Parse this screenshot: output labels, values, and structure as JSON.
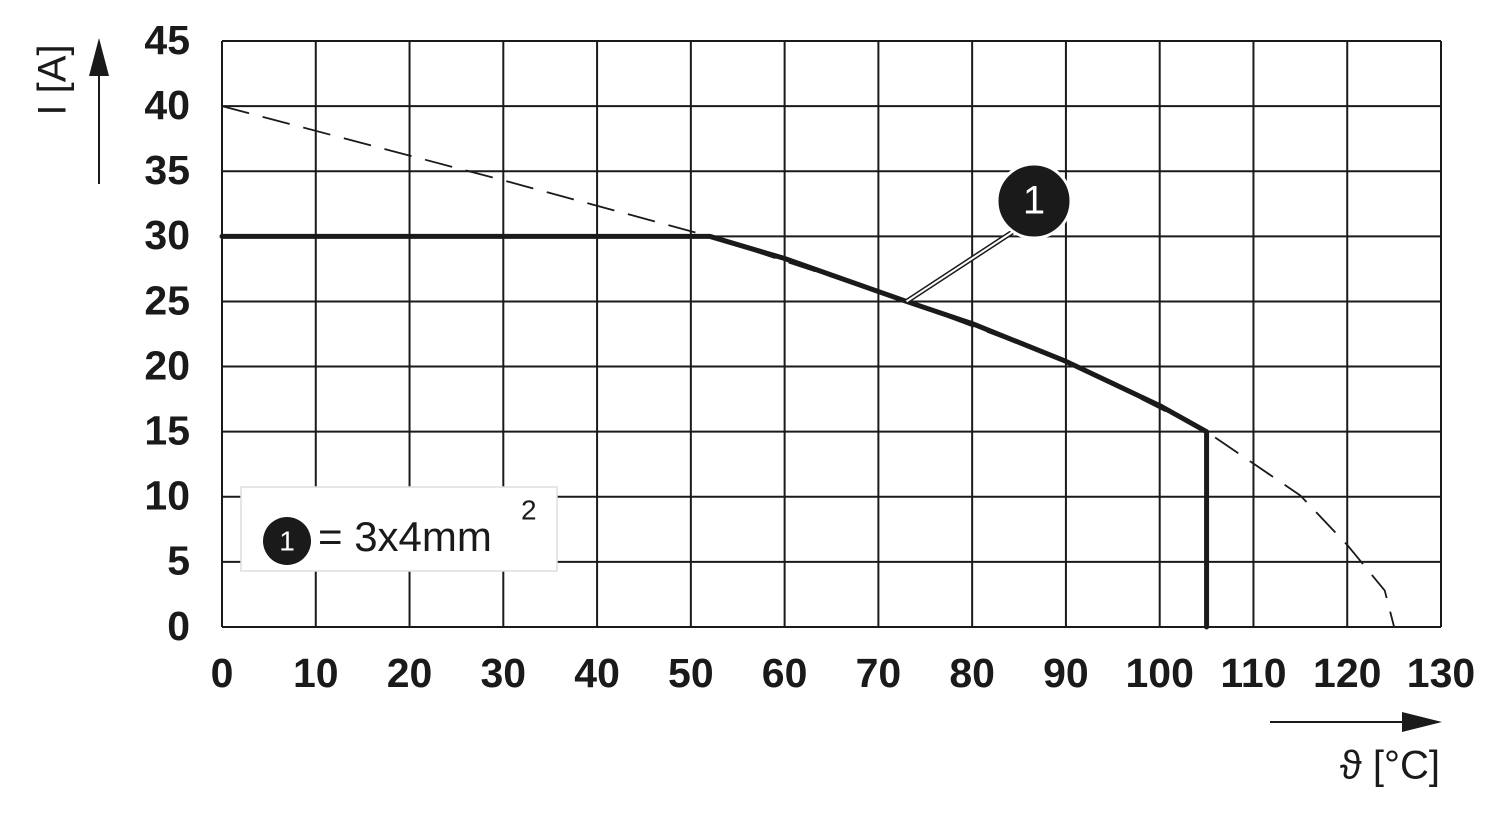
{
  "chart_data": {
    "type": "line",
    "x_label": "ϑ [°C]",
    "y_label": "I [A]",
    "xlim": [
      0,
      130
    ],
    "xticks": [
      0,
      10,
      20,
      30,
      40,
      50,
      60,
      70,
      80,
      90,
      100,
      110,
      120,
      130
    ],
    "ylim": [
      0,
      45
    ],
    "yticks": [
      0,
      5,
      10,
      15,
      20,
      25,
      30,
      35,
      40,
      45
    ],
    "grid": true,
    "series": [
      {
        "style": "dashed",
        "color": "#1a1a1a",
        "x": [
          0,
          30,
          52,
          73,
          90,
          105,
          115,
          120,
          124,
          125
        ],
        "values": [
          40,
          34.3,
          30,
          25,
          20.4,
          15,
          10.1,
          6.3,
          2.8,
          0
        ]
      },
      {
        "style": "solid",
        "color": "#1a1a1a",
        "x": [
          0,
          52,
          60,
          73,
          80,
          90,
          100,
          105,
          105
        ],
        "values": [
          30,
          30,
          28.3,
          25,
          23.3,
          20.4,
          17,
          15,
          0
        ]
      }
    ],
    "callout": {
      "label": "1",
      "x": 73,
      "y": 25
    },
    "legend": {
      "marker": "1",
      "text": "= 3x4mm",
      "superscript": "2"
    }
  }
}
